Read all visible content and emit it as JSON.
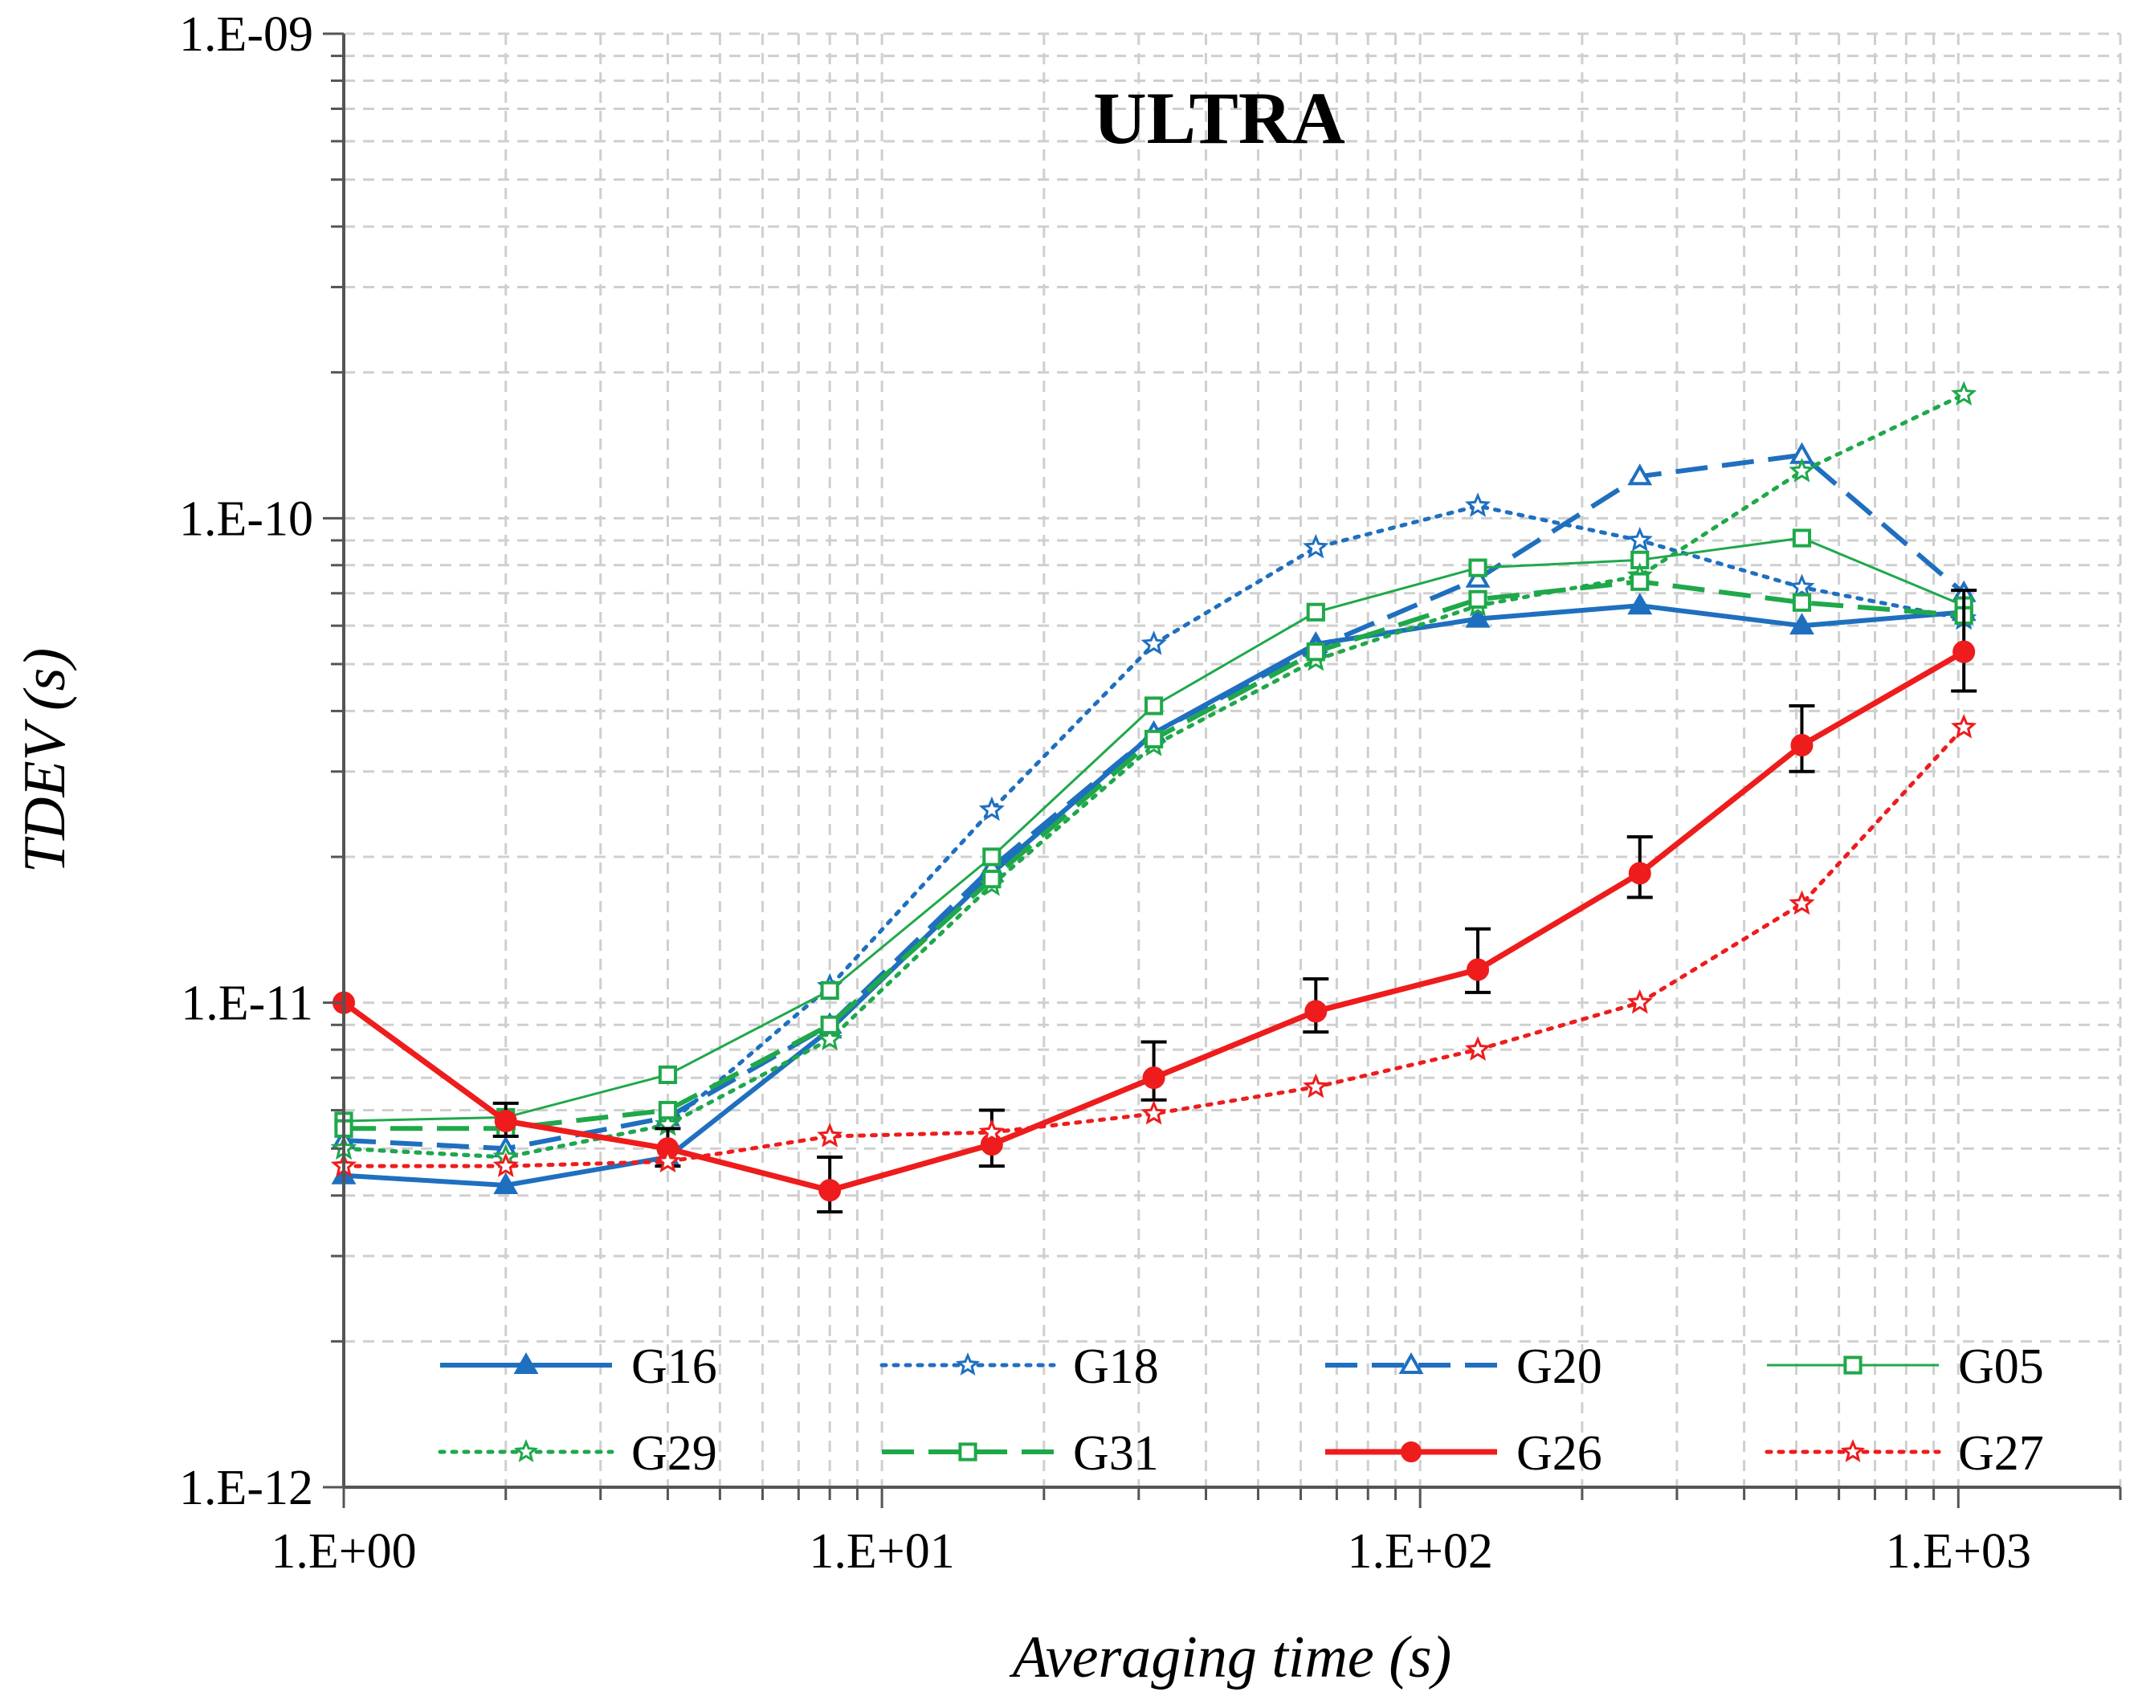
{
  "chart_data": {
    "type": "line",
    "title": "ULTRA",
    "xlabel": "Averaging time (s)",
    "ylabel": "TDEV (s)",
    "xscale": "log",
    "yscale": "log",
    "xlim": [
      1,
      2000
    ],
    "ylim": [
      1e-12,
      1e-09
    ],
    "grid": true,
    "legend": "bottom, 4 columns",
    "x_ticks": [
      {
        "value": 1,
        "label": "1.E+00"
      },
      {
        "value": 10,
        "label": "1.E+01"
      },
      {
        "value": 100,
        "label": "1.E+02"
      },
      {
        "value": 1000,
        "label": "1.E+03"
      }
    ],
    "y_ticks": [
      {
        "value": 1e-12,
        "label": "1.E-12"
      },
      {
        "value": 1e-11,
        "label": "1.E-11"
      },
      {
        "value": 1e-10,
        "label": "1.E-10"
      },
      {
        "value": 1e-09,
        "label": "1.E-09"
      }
    ],
    "x": [
      1,
      2,
      4,
      8,
      16,
      32,
      64,
      128,
      256,
      512,
      1024
    ],
    "series": [
      {
        "name": "G16",
        "color": "#1f6fbf",
        "dash": "solid",
        "width": 6,
        "marker": "triangle-filled",
        "values": [
          4.4e-12,
          4.2e-12,
          4.8e-12,
          8.8e-12,
          1.85e-11,
          3.6e-11,
          5.5e-11,
          6.2e-11,
          6.6e-11,
          6e-11,
          6.4e-11
        ]
      },
      {
        "name": "G18",
        "color": "#1f6fbf",
        "dash": "dot",
        "width": 5,
        "marker": "star-open",
        "values": [
          5e-12,
          4.8e-12,
          5.6e-12,
          1.08e-11,
          2.5e-11,
          5.5e-11,
          8.7e-11,
          1.06e-10,
          9e-11,
          7.2e-11,
          6.2e-11
        ]
      },
      {
        "name": "G20",
        "color": "#1f6fbf",
        "dash": "longdash",
        "width": 6,
        "marker": "triangle-open",
        "values": [
          5.2e-12,
          5e-12,
          5.8e-12,
          9e-12,
          1.9e-11,
          3.6e-11,
          5.4e-11,
          7.5e-11,
          1.22e-10,
          1.35e-10,
          7e-11
        ]
      },
      {
        "name": "G05",
        "color": "#1fa84a",
        "dash": "solid",
        "width": 3,
        "marker": "square-open",
        "values": [
          5.7e-12,
          5.8e-12,
          7.1e-12,
          1.06e-11,
          2e-11,
          4.1e-11,
          6.4e-11,
          7.9e-11,
          8.2e-11,
          9.1e-11,
          6.6e-11
        ]
      },
      {
        "name": "G29",
        "color": "#1fa84a",
        "dash": "dot",
        "width": 5,
        "marker": "star-open",
        "values": [
          5e-12,
          4.8e-12,
          5.6e-12,
          8.4e-12,
          1.75e-11,
          3.4e-11,
          5.1e-11,
          6.6e-11,
          7.6e-11,
          1.25e-10,
          1.8e-10
        ]
      },
      {
        "name": "G31",
        "color": "#1fa84a",
        "dash": "longdash",
        "width": 6,
        "marker": "square-open",
        "values": [
          5.5e-12,
          5.5e-12,
          6e-12,
          9e-12,
          1.8e-11,
          3.5e-11,
          5.3e-11,
          6.8e-11,
          7.4e-11,
          6.7e-11,
          6.3e-11
        ]
      },
      {
        "name": "G26",
        "color": "#ee1c1c",
        "dash": "solid",
        "width": 7,
        "marker": "circle-filled",
        "values": [
          1e-11,
          5.7e-12,
          5e-12,
          4.1e-12,
          5.1e-12,
          7e-12,
          9.6e-12,
          1.17e-11,
          1.85e-11,
          3.4e-11,
          5.3e-11
        ],
        "error_low": [
          null,
          5.3e-12,
          4.6e-12,
          3.7e-12,
          4.6e-12,
          6.3e-12,
          8.7e-12,
          1.05e-11,
          1.65e-11,
          3e-11,
          4.4e-11
        ],
        "error_high": [
          null,
          6.2e-12,
          5.5e-12,
          4.8e-12,
          6e-12,
          8.3e-12,
          1.12e-11,
          1.42e-11,
          2.2e-11,
          4.1e-11,
          7.1e-11
        ]
      },
      {
        "name": "G27",
        "color": "#ee1c1c",
        "dash": "dot",
        "width": 5,
        "marker": "star-open",
        "values": [
          4.6e-12,
          4.6e-12,
          4.7e-12,
          5.3e-12,
          5.4e-12,
          5.9e-12,
          6.7e-12,
          8e-12,
          1e-11,
          1.6e-11,
          3.7e-11
        ]
      }
    ]
  }
}
